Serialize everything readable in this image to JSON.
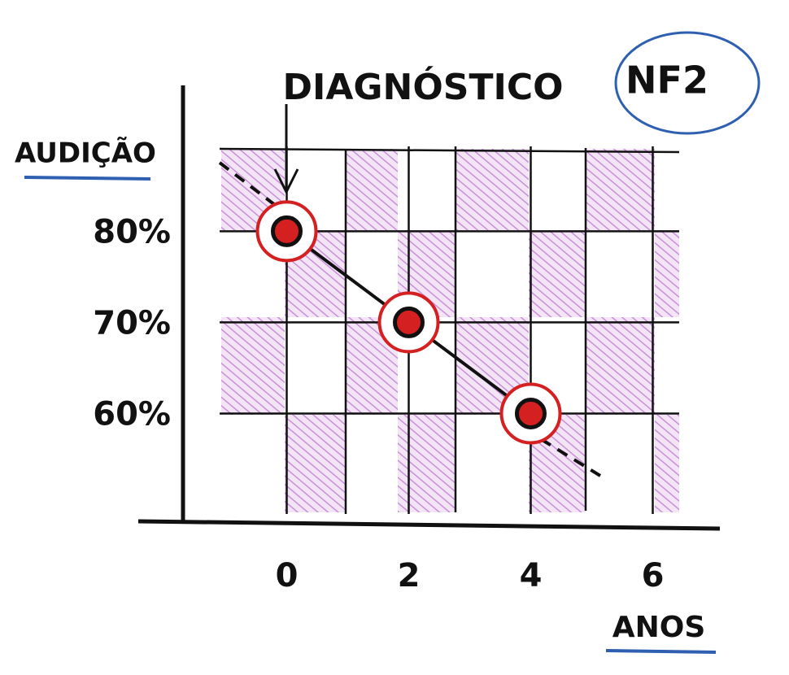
{
  "chart_data": {
    "type": "line",
    "title": "NF2",
    "annotation": "DIAGNÓSTICO",
    "y_label": "AUDIÇÃO",
    "x_label": "ANOS",
    "x": [
      0,
      2,
      4
    ],
    "series": [
      {
        "name": "Audição",
        "color": "#111111",
        "marker_color": "#d42020",
        "values": [
          80,
          70,
          60
        ]
      }
    ],
    "xlim": [
      -1.7,
      7.1
    ],
    "ylim": [
      48,
      96
    ],
    "xticks": [
      0,
      2,
      4,
      6
    ],
    "yticks": [
      {
        "value": 60,
        "label": "60%"
      },
      {
        "value": 70,
        "label": "70%"
      },
      {
        "value": 80,
        "label": "80%"
      }
    ],
    "grid": true
  }
}
